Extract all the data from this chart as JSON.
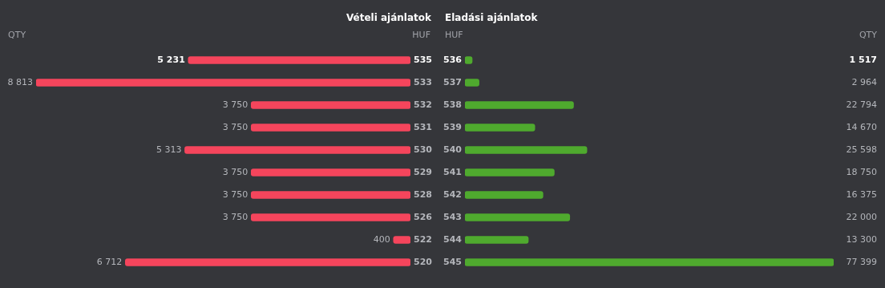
{
  "chart_data": [
    {
      "type": "bar",
      "orientation": "horizontal",
      "title": "Vételi ajánlatok",
      "xlabel": "QTY",
      "ylabel": "HUF",
      "categories": [
        "535",
        "533",
        "532",
        "531",
        "530",
        "529",
        "528",
        "526",
        "522",
        "520"
      ],
      "values": [
        5231,
        8813,
        3750,
        3750,
        5313,
        3750,
        3750,
        3750,
        400,
        6712
      ],
      "value_labels": [
        "5 231",
        "8 813",
        "3 750",
        "3 750",
        "5 313",
        "3 750",
        "3 750",
        "3 750",
        "400",
        "6 712"
      ],
      "color": "#f5455c",
      "xlim": [
        8813,
        0
      ],
      "tick_labels": "y",
      "grid": false
    },
    {
      "type": "bar",
      "orientation": "horizontal",
      "title": "Eladási ajánlatok",
      "xlabel": "QTY",
      "ylabel": "HUF",
      "categories": [
        "536",
        "537",
        "538",
        "539",
        "540",
        "541",
        "542",
        "543",
        "544",
        "545"
      ],
      "values": [
        1517,
        2964,
        22794,
        14670,
        25598,
        18750,
        16375,
        22000,
        13300,
        77399
      ],
      "value_labels": [
        "1 517",
        "2 964",
        "22 794",
        "14 670",
        "25 598",
        "18 750",
        "16 375",
        "22 000",
        "13 300",
        "77 399"
      ],
      "color": "#4faa2e",
      "xlim": [
        0,
        77399
      ],
      "tick_labels": "y",
      "grid": false
    }
  ]
}
